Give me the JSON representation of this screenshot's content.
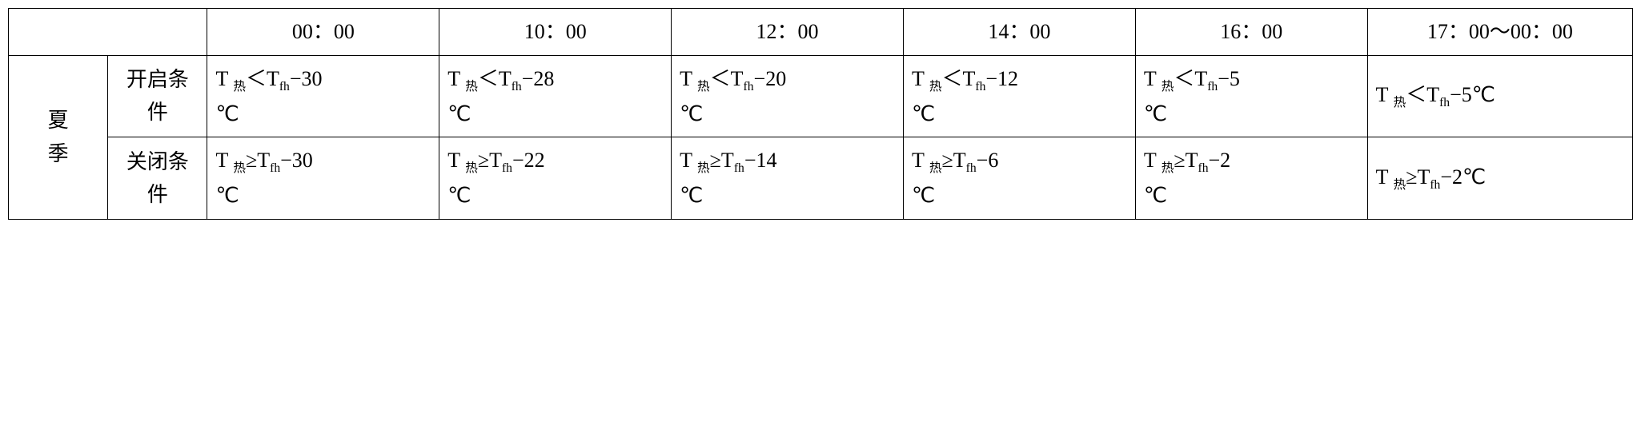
{
  "table": {
    "type": "table",
    "border_color": "#000000",
    "background_color": "#ffffff",
    "text_color": "#000000",
    "fontsize": 26,
    "headers": {
      "empty": "",
      "times": [
        "00：00",
        "10：00",
        "12：00",
        "14：00",
        "16：00",
        "17：00～00：00"
      ]
    },
    "season_label": "夏季",
    "rows": [
      {
        "condition_label": "开启条件",
        "cells": [
          "T 热＜Tfh−30℃",
          "T 热＜Tfh−28℃",
          "T 热＜Tfh−20℃",
          "T 热＜Tfh−12℃",
          "T 热＜Tfh−5℃",
          "T 热＜Tfh−5℃"
        ]
      },
      {
        "condition_label": "关闭条件",
        "cells": [
          "T 热≥Tfh−30℃",
          "T 热≥Tfh−22℃",
          "T 热≥Tfh−14℃",
          "T 热≥Tfh−6℃",
          "T 热≥Tfh−2℃",
          "T 热≥Tfh−2℃"
        ]
      }
    ]
  }
}
